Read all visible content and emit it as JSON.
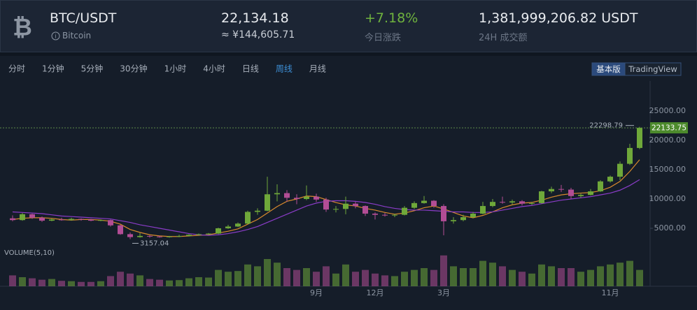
{
  "header": {
    "symbol": "BTC/USDT",
    "name": "Bitcoin",
    "price": "22,134.18",
    "price_cny": "≈ ¥144,605.71",
    "change": "+7.18%",
    "change_label": "今日涨跌",
    "volume": "1,381,999,206.82 USDT",
    "volume_label": "24H 成交额"
  },
  "tabs": [
    "分时",
    "1分钟",
    "5分钟",
    "30分钟",
    "1小时",
    "4小时",
    "日线",
    "周线",
    "月线"
  ],
  "active_tab": 7,
  "modes": [
    "基本版",
    "TradingView"
  ],
  "active_mode": 0,
  "chart_data": {
    "type": "candlestick",
    "categories": [
      null,
      null,
      null,
      null,
      null,
      null,
      null,
      null,
      null,
      null,
      null,
      null,
      null,
      null,
      null,
      null,
      null,
      null,
      null,
      null,
      null,
      null,
      null,
      null,
      null,
      null,
      null,
      null,
      null,
      null,
      null,
      "9月",
      null,
      null,
      null,
      null,
      null,
      "12月",
      null,
      null,
      null,
      null,
      null,
      null,
      "3月",
      null,
      null,
      null,
      null,
      null,
      null,
      null,
      null,
      null,
      null,
      null,
      null,
      null,
      null,
      null,
      null,
      "11月",
      null,
      null,
      null
    ],
    "ohlc": [
      [
        6700,
        7200,
        6200,
        6400
      ],
      [
        6400,
        7600,
        6300,
        7400
      ],
      [
        7400,
        7500,
        6600,
        6800
      ],
      [
        6800,
        7000,
        6100,
        6300
      ],
      [
        6300,
        6700,
        6200,
        6500
      ],
      [
        6500,
        6800,
        6300,
        6400
      ],
      [
        6400,
        6800,
        6300,
        6600
      ],
      [
        6600,
        6700,
        6300,
        6500
      ],
      [
        6500,
        6600,
        6200,
        6300
      ],
      [
        6300,
        6500,
        6200,
        6400
      ],
      [
        6400,
        6500,
        5300,
        5500
      ],
      [
        5500,
        5600,
        3900,
        4000
      ],
      [
        4000,
        4300,
        3157.04,
        3500
      ],
      [
        3500,
        4200,
        3400,
        3700
      ],
      [
        3700,
        3800,
        3400,
        3600
      ],
      [
        3600,
        3700,
        3400,
        3500
      ],
      [
        3500,
        3700,
        3400,
        3600
      ],
      [
        3600,
        3900,
        3500,
        3700
      ],
      [
        3700,
        4000,
        3600,
        3900
      ],
      [
        3900,
        4100,
        3800,
        4000
      ],
      [
        4000,
        4200,
        3900,
        4100
      ],
      [
        4100,
        5100,
        4000,
        5000
      ],
      [
        5000,
        5600,
        4900,
        5300
      ],
      [
        5300,
        6000,
        5200,
        5800
      ],
      [
        5800,
        8000,
        5700,
        7800
      ],
      [
        7800,
        8400,
        7300,
        8000
      ],
      [
        8000,
        13800,
        7900,
        10800
      ],
      [
        10800,
        12500,
        9600,
        11000
      ],
      [
        11000,
        11500,
        9500,
        10200
      ],
      [
        10200,
        10800,
        9100,
        10000
      ],
      [
        10000,
        12300,
        9800,
        10400
      ],
      [
        10400,
        10900,
        9500,
        9900
      ],
      [
        9900,
        10200,
        7800,
        8200
      ],
      [
        8200,
        8800,
        7700,
        8300
      ],
      [
        8300,
        10400,
        7400,
        9200
      ],
      [
        9200,
        9500,
        8400,
        8800
      ],
      [
        8800,
        8900,
        7100,
        7500
      ],
      [
        7500,
        7700,
        6500,
        7300
      ],
      [
        7300,
        7600,
        7000,
        7200
      ],
      [
        7200,
        7500,
        6900,
        7300
      ],
      [
        7300,
        8800,
        7200,
        8500
      ],
      [
        8500,
        9600,
        8300,
        9300
      ],
      [
        9300,
        10500,
        9200,
        9700
      ],
      [
        9700,
        9800,
        8500,
        8800
      ],
      [
        8800,
        9100,
        3800,
        6200
      ],
      [
        6200,
        6900,
        5800,
        6400
      ],
      [
        6400,
        7300,
        6200,
        6900
      ],
      [
        6900,
        7800,
        6700,
        7500
      ],
      [
        7500,
        9500,
        7400,
        8800
      ],
      [
        8800,
        10000,
        8600,
        9500
      ],
      [
        9500,
        10400,
        9200,
        9400
      ],
      [
        9400,
        9900,
        9000,
        9600
      ],
      [
        9600,
        9800,
        8900,
        9200
      ],
      [
        9200,
        9500,
        9000,
        9300
      ],
      [
        9300,
        11400,
        9200,
        11300
      ],
      [
        11300,
        12100,
        11000,
        11700
      ],
      [
        11700,
        12400,
        11200,
        11600
      ],
      [
        11600,
        11900,
        10000,
        10500
      ],
      [
        10500,
        10900,
        10200,
        10700
      ],
      [
        10700,
        11700,
        10600,
        11300
      ],
      [
        11300,
        13200,
        11200,
        13000
      ],
      [
        13000,
        14000,
        12800,
        13800
      ],
      [
        13800,
        16400,
        13200,
        16000
      ],
      [
        16000,
        19400,
        15800,
        18700
      ],
      [
        18700,
        22298.79,
        18500,
        22133.75
      ]
    ],
    "volume": [
      30,
      25,
      22,
      18,
      20,
      15,
      14,
      12,
      12,
      14,
      28,
      40,
      35,
      30,
      20,
      18,
      16,
      17,
      22,
      25,
      24,
      45,
      40,
      42,
      60,
      55,
      75,
      65,
      50,
      45,
      50,
      40,
      55,
      35,
      60,
      40,
      45,
      35,
      30,
      28,
      40,
      45,
      50,
      45,
      85,
      55,
      50,
      50,
      70,
      65,
      55,
      45,
      40,
      35,
      60,
      55,
      50,
      50,
      40,
      45,
      55,
      60,
      65,
      70,
      45
    ],
    "volume_label": "VOLUME(5,10)",
    "vlim": [
      0,
      100
    ],
    "series": [
      {
        "color": "#d8892c",
        "values": [
          6500,
          6700,
          6800,
          6800,
          6700,
          6500,
          6400,
          6500,
          6500,
          6400,
          6200,
          5700,
          4800,
          4300,
          3900,
          3700,
          3600,
          3600,
          3700,
          3800,
          3900,
          4200,
          4500,
          4900,
          5700,
          6500,
          7600,
          8700,
          9600,
          10000,
          10500,
          10400,
          9900,
          9400,
          9000,
          8800,
          8400,
          8100,
          7700,
          7400,
          7600,
          8000,
          8500,
          8800,
          8300,
          7700,
          7100,
          6800,
          7200,
          7800,
          8500,
          9000,
          9300,
          9400,
          9800,
          10300,
          10700,
          10900,
          11000,
          11100,
          11400,
          12000,
          13000,
          14700,
          16700
        ]
      },
      {
        "color": "#8a3cc8",
        "values": [
          7800,
          7700,
          7600,
          7500,
          7300,
          7100,
          7000,
          6900,
          6800,
          6700,
          6600,
          6300,
          6000,
          5600,
          5300,
          5000,
          4700,
          4400,
          4100,
          3900,
          3800,
          3900,
          4100,
          4400,
          4800,
          5300,
          6000,
          6700,
          7400,
          8100,
          8800,
          9300,
          9600,
          9700,
          9700,
          9600,
          9400,
          9100,
          8700,
          8400,
          8200,
          8100,
          8100,
          8000,
          7900,
          7800,
          7800,
          7700,
          7700,
          7800,
          8100,
          8400,
          8700,
          8900,
          9200,
          9500,
          9800,
          10000,
          10200,
          10400,
          10700,
          11000,
          11500,
          12300,
          13300
        ]
      }
    ],
    "up_color": "#6fa83a",
    "down_color": "#b24d95",
    "ylim": [
      1700,
      30000
    ],
    "yticks": [
      {
        "value": 5000,
        "label": "5000.00"
      },
      {
        "value": 10000,
        "label": "10000.00"
      },
      {
        "value": 15000,
        "label": "15000.00"
      },
      {
        "value": 20000,
        "label": "20000.00"
      },
      {
        "value": 25000,
        "label": "25000.00"
      }
    ],
    "grid": false
  }
}
